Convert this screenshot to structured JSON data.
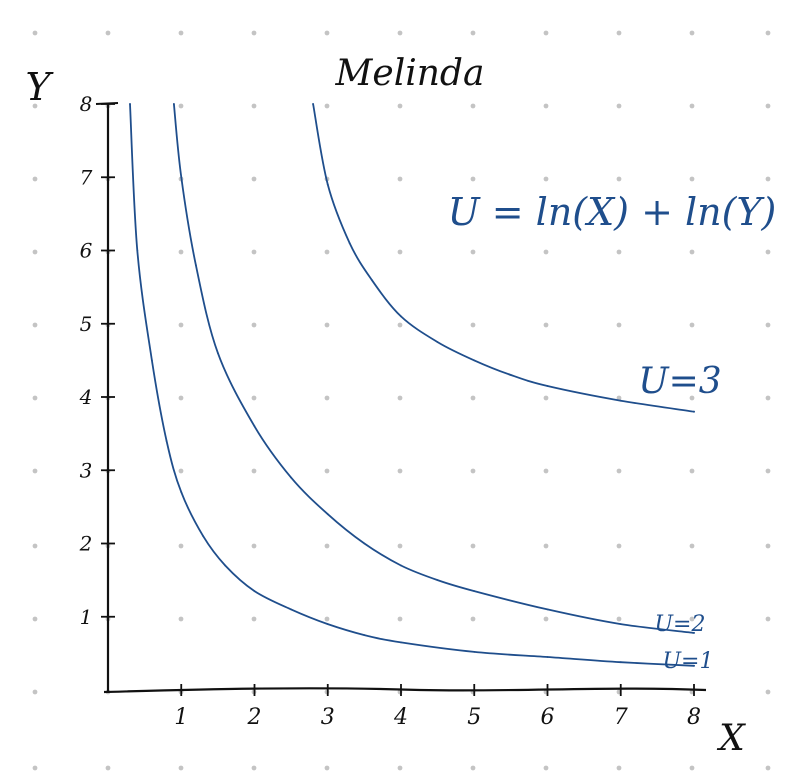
{
  "chart_data": {
    "type": "line",
    "title": "Melinda",
    "xlabel": "X",
    "ylabel": "Y",
    "xlim": [
      0,
      8
    ],
    "ylim": [
      0,
      8
    ],
    "x_ticks": [
      "1",
      "2",
      "3",
      "4",
      "5",
      "6",
      "7",
      "8"
    ],
    "y_ticks": [
      "1",
      "2",
      "3",
      "4",
      "5",
      "6",
      "7",
      "8"
    ],
    "annotation": "U = ln(X) + ln(Y)",
    "grid": "dot grid",
    "series": [
      {
        "name": "U=1",
        "label": "U=1",
        "x": [
          0.3,
          0.4,
          0.6,
          0.8,
          1.0,
          1.3,
          1.6,
          2.0,
          2.5,
          3.0,
          3.5,
          4.0,
          5.0,
          6.0,
          7.0,
          8.0
        ],
        "y": [
          8.0,
          6.0,
          4.5,
          3.4,
          2.7,
          2.1,
          1.7,
          1.35,
          1.1,
          0.9,
          0.75,
          0.65,
          0.52,
          0.45,
          0.38,
          0.33
        ]
      },
      {
        "name": "U=2",
        "label": "U=2",
        "x": [
          0.9,
          1.0,
          1.2,
          1.5,
          2.0,
          2.5,
          3.0,
          3.5,
          4.0,
          4.5,
          5.0,
          6.0,
          7.0,
          8.0
        ],
        "y": [
          8.0,
          7.0,
          5.8,
          4.6,
          3.6,
          2.9,
          2.4,
          2.0,
          1.7,
          1.5,
          1.35,
          1.1,
          0.9,
          0.78
        ]
      },
      {
        "name": "U=3",
        "label": "U=3",
        "x": [
          2.8,
          3.0,
          3.3,
          3.6,
          4.0,
          4.5,
          5.0,
          5.5,
          6.0,
          7.0,
          8.0
        ],
        "y": [
          8.0,
          6.9,
          6.1,
          5.6,
          5.1,
          4.75,
          4.5,
          4.3,
          4.15,
          3.95,
          3.8
        ]
      }
    ]
  }
}
